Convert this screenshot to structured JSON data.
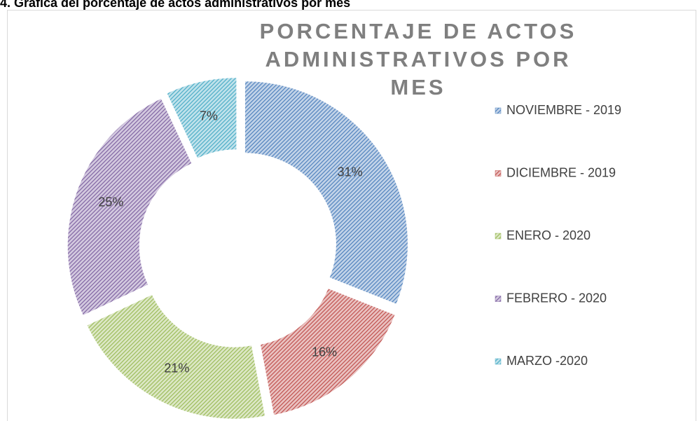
{
  "caption": "4. Gráfica del porcentaje de actos administrativos por mes",
  "chart_data": {
    "type": "donut",
    "title": "PORCENTAJE DE ACTOS ADMINISTRATIVOS POR MES",
    "categories": [
      "NOVIEMBRE - 2019",
      "DICIEMBRE - 2019",
      "ENERO - 2020",
      "FEBRERO - 2020",
      "MARZO -2020"
    ],
    "values": [
      31,
      16,
      21,
      25,
      7
    ],
    "value_labels": [
      "31%",
      "16%",
      "21%",
      "25%",
      "7%"
    ],
    "colors": [
      "#4f81bd",
      "#c0504d",
      "#9bbb59",
      "#8064a2",
      "#4bacc6"
    ],
    "legend": "right"
  }
}
